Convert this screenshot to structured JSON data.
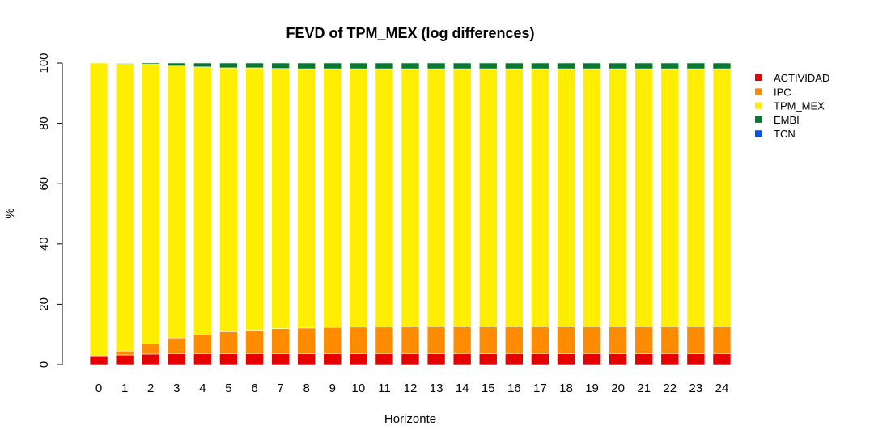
{
  "chart_data": {
    "type": "bar",
    "stacked": true,
    "title": "FEVD of TPM_MEX (log differences)",
    "xlabel": "Horizonte",
    "ylabel": "%",
    "ylim": [
      0,
      100
    ],
    "yticks": [
      0,
      20,
      40,
      60,
      80,
      100
    ],
    "categories": [
      "0",
      "1",
      "2",
      "3",
      "4",
      "5",
      "6",
      "7",
      "8",
      "9",
      "10",
      "11",
      "12",
      "13",
      "14",
      "15",
      "16",
      "17",
      "18",
      "19",
      "20",
      "21",
      "22",
      "23",
      "24"
    ],
    "legend_position": "top-right",
    "grid": false,
    "series": [
      {
        "name": "ACTIVIDAD",
        "color": "#e60000",
        "values": [
          2.9,
          3.2,
          3.5,
          3.6,
          3.6,
          3.6,
          3.6,
          3.6,
          3.6,
          3.6,
          3.6,
          3.6,
          3.6,
          3.6,
          3.6,
          3.6,
          3.6,
          3.6,
          3.6,
          3.6,
          3.6,
          3.6,
          3.6,
          3.6,
          3.6
        ]
      },
      {
        "name": "IPC",
        "color": "#ff8c00",
        "values": [
          0.0,
          1.3,
          3.3,
          5.2,
          6.5,
          7.3,
          7.8,
          8.3,
          8.5,
          8.7,
          8.8,
          8.8,
          8.9,
          8.9,
          8.9,
          8.9,
          8.9,
          8.9,
          8.9,
          8.9,
          8.9,
          8.9,
          8.9,
          8.9,
          8.9
        ]
      },
      {
        "name": "TPM_MEX",
        "color": "#ffee00",
        "values": [
          97.1,
          95.3,
          92.8,
          90.2,
          88.6,
          87.5,
          87.0,
          86.3,
          86.0,
          85.8,
          85.7,
          85.7,
          85.6,
          85.6,
          85.6,
          85.6,
          85.6,
          85.6,
          85.6,
          85.6,
          85.6,
          85.6,
          85.6,
          85.6,
          85.6
        ]
      },
      {
        "name": "EMBI",
        "color": "#087830",
        "values": [
          0.0,
          0.2,
          0.4,
          1.0,
          1.3,
          1.6,
          1.6,
          1.8,
          1.9,
          1.9,
          1.9,
          1.9,
          1.9,
          1.9,
          1.9,
          1.9,
          1.9,
          1.9,
          1.9,
          1.9,
          1.9,
          1.9,
          1.9,
          1.9,
          1.9
        ]
      },
      {
        "name": "TCN",
        "color": "#0055ee",
        "values": [
          0.0,
          0.0,
          0.0,
          0.0,
          0.0,
          0.0,
          0.0,
          0.0,
          0.0,
          0.0,
          0.0,
          0.0,
          0.0,
          0.0,
          0.0,
          0.0,
          0.0,
          0.0,
          0.0,
          0.0,
          0.0,
          0.0,
          0.0,
          0.0,
          0.0
        ]
      }
    ]
  }
}
